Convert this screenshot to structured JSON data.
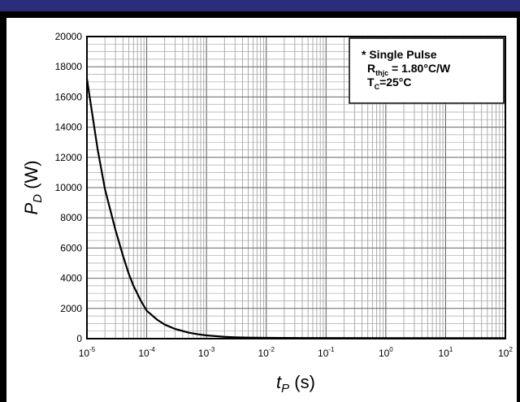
{
  "chart_data": {
    "type": "line",
    "xscale": "log",
    "xlim": [
      1e-05,
      100
    ],
    "ylim": [
      0,
      20000
    ],
    "grid": true,
    "xlabel": {
      "main": "t",
      "sub": "P",
      "unit": " (s)"
    },
    "ylabel": {
      "main": "P",
      "sub": "D",
      "unit": " (W)"
    },
    "y_ticks": [
      "0",
      "2000",
      "4000",
      "6000",
      "8000",
      "10000",
      "12000",
      "14000",
      "16000",
      "18000",
      "20000"
    ],
    "x_ticks": [
      {
        "base": "10",
        "exp": "-5"
      },
      {
        "base": "10",
        "exp": "-4"
      },
      {
        "base": "10",
        "exp": "-3"
      },
      {
        "base": "10",
        "exp": "-2"
      },
      {
        "base": "10",
        "exp": "-1"
      },
      {
        "base": "10",
        "exp": "0"
      },
      {
        "base": "10",
        "exp": "1"
      },
      {
        "base": "10",
        "exp": "2"
      }
    ],
    "legend": {
      "position": "top-right",
      "line1": "* Single Pulse",
      "line2_main": "R",
      "line2_sub": "thjc",
      "line2_rest": " = 1.80°C/W",
      "line3_main": "T",
      "line3_sub": "C",
      "line3_rest": "=25°C"
    },
    "series": [
      {
        "color": "#000000",
        "x": [
          1e-05,
          1.5e-05,
          2e-05,
          3e-05,
          4e-05,
          5e-05,
          6e-05,
          8e-05,
          0.0001,
          0.00015,
          0.0002,
          0.0003,
          0.0005,
          0.0007,
          0.001,
          0.002,
          0.003,
          0.005,
          0.01,
          0.02,
          0.05,
          0.1,
          1,
          10,
          100
        ],
        "y": [
          17200,
          12600,
          9900,
          7200,
          5500,
          4300,
          3500,
          2500,
          1850,
          1250,
          930,
          640,
          400,
          300,
          215,
          120,
          90,
          70,
          55,
          48,
          42,
          40,
          38,
          37,
          36
        ]
      }
    ]
  }
}
